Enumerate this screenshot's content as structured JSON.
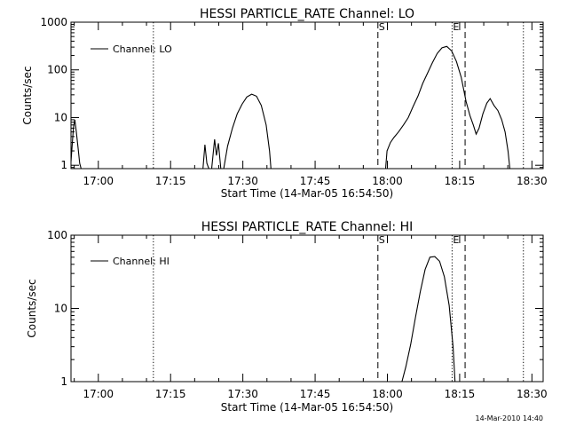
{
  "footer": {
    "timestamp": "14-Mar-2010 14:40"
  },
  "chart_data": [
    {
      "type": "line",
      "title": "HESSI PARTICLE_RATE Channel: LO",
      "xlabel": "Start Time (14-Mar-05 16:54:50)",
      "ylabel": "Counts/sec",
      "x_range_min": [
        -0.5,
        97.5
      ],
      "x_ticks_min": [
        5.17,
        20.17,
        35.17,
        50.17,
        65.17,
        80.17,
        95.17
      ],
      "x_tick_labels": [
        "17:00",
        "17:15",
        "17:30",
        "17:45",
        "18:00",
        "18:15",
        "18:30"
      ],
      "y_scale": "log",
      "ylim": [
        0.85,
        1000
      ],
      "y_ticks": [
        1,
        10,
        100,
        1000
      ],
      "y_tick_labels": [
        "1",
        "10",
        "100",
        "1000"
      ],
      "legend": {
        "position": "top-left",
        "entries": [
          "Channel: LO"
        ]
      },
      "markers": [
        {
          "type": "dotted",
          "x_min": 16.6
        },
        {
          "type": "dashed",
          "x_min": 63.2,
          "label": "S"
        },
        {
          "type": "dotted",
          "x_min": 78.6,
          "label": "E"
        },
        {
          "type": "dashed",
          "x_min": 81.3
        },
        {
          "type": "dotted",
          "x_min": 93.4
        }
      ],
      "series": [
        {
          "segments": [
            [
              [
                -0.5,
                1.2
              ],
              [
                0,
                6
              ],
              [
                0.3,
                9
              ],
              [
                0.6,
                5
              ],
              [
                1,
                2.2
              ],
              [
                1.3,
                1.1
              ],
              [
                1.6,
                0.85
              ]
            ],
            [
              [
                26.9,
                0.85
              ],
              [
                27.3,
                2.7
              ],
              [
                27.7,
                1.1
              ],
              [
                28.1,
                0.85
              ]
            ],
            [
              [
                28.7,
                0.85
              ],
              [
                29.3,
                3.5
              ],
              [
                29.7,
                1.6
              ],
              [
                30.1,
                2.9
              ],
              [
                30.6,
                0.85
              ]
            ],
            [
              [
                31.2,
                0.85
              ],
              [
                32,
                2.5
              ],
              [
                33,
                6
              ],
              [
                34,
                12
              ],
              [
                35,
                19
              ],
              [
                36,
                27
              ],
              [
                37,
                31
              ],
              [
                38,
                28
              ],
              [
                39,
                18
              ],
              [
                40,
                7
              ],
              [
                40.7,
                2
              ],
              [
                41,
                0.85
              ]
            ],
            [
              [
                64.8,
                0.85
              ],
              [
                65.1,
                2
              ],
              [
                65.8,
                3
              ],
              [
                66.5,
                3.8
              ],
              [
                67.5,
                5
              ],
              [
                68.5,
                7
              ],
              [
                69.5,
                10
              ],
              [
                70.5,
                17
              ],
              [
                71.5,
                28
              ],
              [
                72.5,
                52
              ],
              [
                73.5,
                85
              ],
              [
                74.5,
                140
              ],
              [
                75.5,
                220
              ],
              [
                76.5,
                290
              ],
              [
                77.5,
                310
              ],
              [
                78.5,
                250
              ],
              [
                79.5,
                150
              ],
              [
                80.5,
                70
              ],
              [
                81.5,
                22
              ],
              [
                82.3,
                11
              ],
              [
                83,
                7
              ],
              [
                83.6,
                4.5
              ],
              [
                84.2,
                6
              ],
              [
                85,
                12
              ],
              [
                85.8,
                20
              ],
              [
                86.5,
                25
              ],
              [
                87.3,
                18
              ],
              [
                88.1,
                14
              ],
              [
                88.9,
                9
              ],
              [
                89.6,
                5
              ],
              [
                90.2,
                2
              ],
              [
                90.6,
                0.85
              ]
            ]
          ]
        }
      ]
    },
    {
      "type": "line",
      "title": "HESSI PARTICLE_RATE Channel: HI",
      "xlabel": "Start Time (14-Mar-05 16:54:50)",
      "ylabel": "Counts/sec",
      "x_range_min": [
        -0.5,
        97.5
      ],
      "x_ticks_min": [
        5.17,
        20.17,
        35.17,
        50.17,
        65.17,
        80.17,
        95.17
      ],
      "x_tick_labels": [
        "17:00",
        "17:15",
        "17:30",
        "17:45",
        "18:00",
        "18:15",
        "18:30"
      ],
      "y_scale": "log",
      "ylim": [
        1,
        100
      ],
      "y_ticks": [
        1,
        10,
        100
      ],
      "y_tick_labels": [
        "1",
        "10",
        "100"
      ],
      "legend": {
        "position": "top-left",
        "entries": [
          "Channel: HI"
        ]
      },
      "markers": [
        {
          "type": "dotted",
          "x_min": 16.6
        },
        {
          "type": "dashed",
          "x_min": 63.2,
          "label": "S"
        },
        {
          "type": "dotted",
          "x_min": 78.6,
          "label": "E"
        },
        {
          "type": "dashed",
          "x_min": 81.3
        },
        {
          "type": "dotted",
          "x_min": 93.4
        }
      ],
      "series": [
        {
          "segments": [
            [
              [
                68.2,
                1
              ],
              [
                69,
                1.6
              ],
              [
                70,
                3.2
              ],
              [
                71,
                7.5
              ],
              [
                72,
                17
              ],
              [
                73,
                34
              ],
              [
                74,
                50
              ],
              [
                75,
                51
              ],
              [
                76,
                44
              ],
              [
                77,
                27
              ],
              [
                78,
                11
              ],
              [
                78.8,
                3
              ],
              [
                79.2,
                1
              ]
            ]
          ]
        }
      ]
    }
  ]
}
